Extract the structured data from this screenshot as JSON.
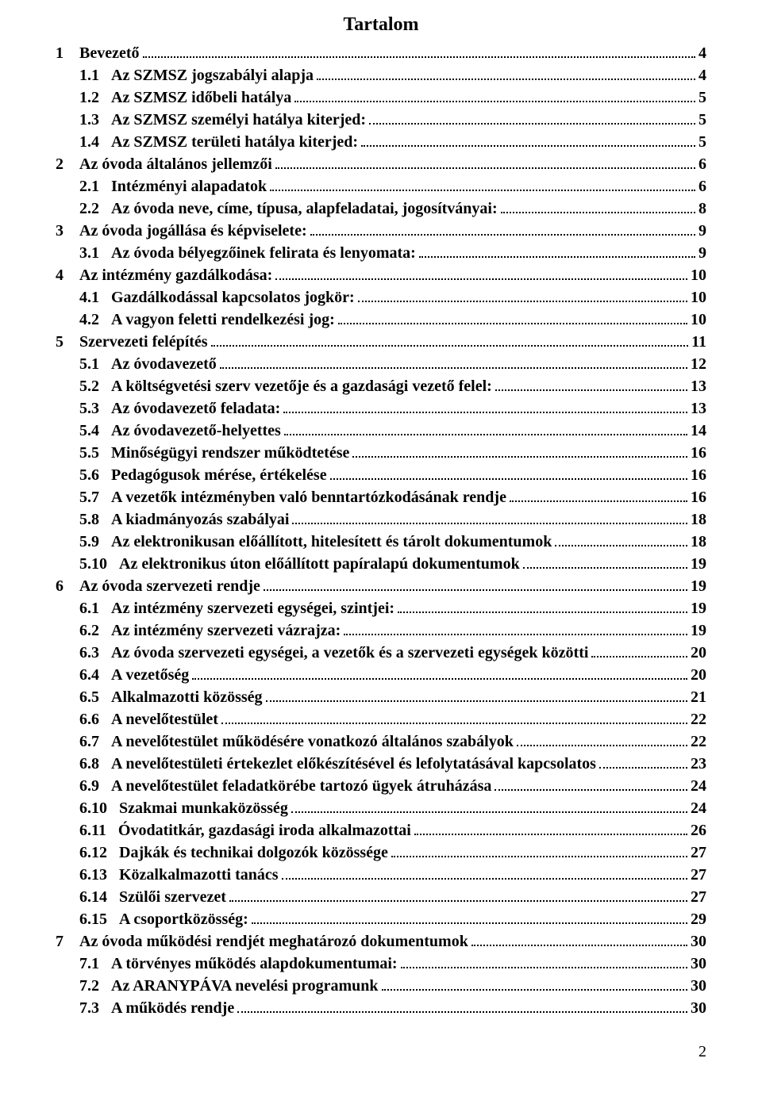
{
  "title": "Tartalom",
  "page_number": "2",
  "typography": {
    "title_fontsize": 24,
    "entry_fontsize": 20,
    "font_family": "Times New Roman",
    "font_weight": "bold",
    "text_color": "#000000",
    "background_color": "#ffffff",
    "leader_style": "dotted"
  },
  "toc": [
    {
      "indent": 0,
      "num": "1",
      "title": "Bevezető",
      "page": "4"
    },
    {
      "indent": 1,
      "num": "1.1",
      "title": "Az SZMSZ jogszabályi alapja",
      "page": "4"
    },
    {
      "indent": 1,
      "num": "1.2",
      "title": "Az SZMSZ időbeli hatálya",
      "page": "5"
    },
    {
      "indent": 1,
      "num": "1.3",
      "title": "Az SZMSZ személyi hatálya kiterjed:",
      "page": "5"
    },
    {
      "indent": 1,
      "num": "1.4",
      "title": "Az SZMSZ területi hatálya kiterjed:",
      "page": "5"
    },
    {
      "indent": 0,
      "num": "2",
      "title": "Az óvoda általános jellemzői",
      "page": "6"
    },
    {
      "indent": 1,
      "num": "2.1",
      "title": "Intézményi alapadatok",
      "page": "6"
    },
    {
      "indent": 1,
      "num": "2.2",
      "title": "Az óvoda neve, címe, típusa, alapfeladatai, jogosítványai:",
      "page": "8"
    },
    {
      "indent": 0,
      "num": "3",
      "title": "Az óvoda jogállása és képviselete:",
      "page": "9"
    },
    {
      "indent": 1,
      "num": "3.1",
      "title": "Az óvoda bélyegzőinek felirata és lenyomata:",
      "page": "9"
    },
    {
      "indent": 0,
      "num": "4",
      "title": "Az intézmény gazdálkodása:",
      "page": "10"
    },
    {
      "indent": 1,
      "num": "4.1",
      "title": "Gazdálkodással kapcsolatos jogkör:",
      "page": "10"
    },
    {
      "indent": 1,
      "num": "4.2",
      "title": "A vagyon feletti rendelkezési jog:",
      "page": "10"
    },
    {
      "indent": 0,
      "num": "5",
      "title": "Szervezeti felépítés",
      "page": "11"
    },
    {
      "indent": 1,
      "num": "5.1",
      "title": "Az óvodavezető",
      "page": "12"
    },
    {
      "indent": 1,
      "num": "5.2",
      "title": "A költségvetési szerv vezetője és a gazdasági vezető felel:",
      "page": "13"
    },
    {
      "indent": 1,
      "num": "5.3",
      "title": "Az óvodavezető feladata:",
      "page": "13"
    },
    {
      "indent": 1,
      "num": "5.4",
      "title": "Az óvodavezető-helyettes",
      "page": "14"
    },
    {
      "indent": 1,
      "num": "5.5",
      "title": "Minőségügyi rendszer működtetése",
      "page": "16"
    },
    {
      "indent": 1,
      "num": "5.6",
      "title": "Pedagógusok mérése, értékelése",
      "page": "16"
    },
    {
      "indent": 1,
      "num": "5.7",
      "title": "A vezetők intézményben való benntartózkodásának rendje",
      "page": "16"
    },
    {
      "indent": 1,
      "num": "5.8",
      "title": "A kiadmányozás szabályai",
      "page": "18"
    },
    {
      "indent": 1,
      "num": "5.9",
      "title": "Az elektronikusan előállított, hitelesített és tárolt dokumentumok",
      "page": "18"
    },
    {
      "indent": 1,
      "num": "5.10",
      "title": "Az elektronikus úton előállított papíralapú dokumentumok",
      "page": "19"
    },
    {
      "indent": 0,
      "num": "6",
      "title": "Az óvoda szervezeti rendje",
      "page": "19"
    },
    {
      "indent": 1,
      "num": "6.1",
      "title": "Az intézmény szervezeti egységei, szintjei:",
      "page": "19"
    },
    {
      "indent": 1,
      "num": "6.2",
      "title": "Az intézmény szervezeti vázrajza:",
      "page": "19"
    },
    {
      "indent": 1,
      "num": "6.3",
      "title": "Az óvoda szervezeti egységei, a vezetők és a szervezeti egységek közötti",
      "page": "20"
    },
    {
      "indent": 1,
      "num": "6.4",
      "title": "A vezetőség",
      "page": "20"
    },
    {
      "indent": 1,
      "num": "6.5",
      "title": "Alkalmazotti közösség",
      "page": "21"
    },
    {
      "indent": 1,
      "num": "6.6",
      "title": "A nevelőtestület",
      "page": "22"
    },
    {
      "indent": 1,
      "num": "6.7",
      "title": "A nevelőtestület működésére vonatkozó általános szabályok",
      "page": "22"
    },
    {
      "indent": 1,
      "num": "6.8",
      "title": "A nevelőtestületi értekezlet előkészítésével és lefolytatásával kapcsolatos",
      "page": "23"
    },
    {
      "indent": 1,
      "num": "6.9",
      "title": "A nevelőtestület feladatkörébe tartozó ügyek átruházása",
      "page": "24"
    },
    {
      "indent": 1,
      "num": "6.10",
      "title": "Szakmai munkaközösség",
      "page": "24"
    },
    {
      "indent": 1,
      "num": "6.11",
      "title": "Óvodatitkár, gazdasági iroda alkalmazottai",
      "page": "26"
    },
    {
      "indent": 1,
      "num": "6.12",
      "title": "Dajkák és technikai dolgozók közössége",
      "page": "27"
    },
    {
      "indent": 1,
      "num": "6.13",
      "title": "Közalkalmazotti tanács",
      "page": "27"
    },
    {
      "indent": 1,
      "num": "6.14",
      "title": "Szülői szervezet",
      "page": "27"
    },
    {
      "indent": 1,
      "num": "6.15",
      "title": "A csoportközösség:",
      "page": "29"
    },
    {
      "indent": 0,
      "num": "7",
      "title": "Az óvoda működési rendjét meghatározó dokumentumok",
      "page": "30"
    },
    {
      "indent": 1,
      "num": "7.1",
      "title": "A törvényes működés alapdokumentumai:",
      "page": "30"
    },
    {
      "indent": 1,
      "num": "7.2",
      "title": "Az ARANYPÁVA nevelési programunk",
      "page": "30"
    },
    {
      "indent": 1,
      "num": "7.3",
      "title": "A működés rendje",
      "page": "30"
    }
  ]
}
